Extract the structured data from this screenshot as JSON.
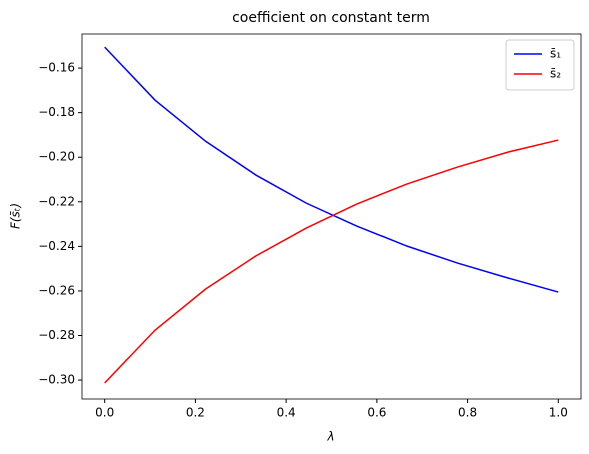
{
  "chart_data": {
    "type": "line",
    "title": "coefficient on constant term",
    "xlabel": "λ",
    "ylabel": "F(s̄ₜ)",
    "x": [
      0,
      0.1111,
      0.2222,
      0.3333,
      0.4444,
      0.5556,
      0.6667,
      0.7778,
      0.8889,
      1.0
    ],
    "series": [
      {
        "name": "s̄₁",
        "color": "#0000ff",
        "values": [
          -0.1506,
          -0.1744,
          -0.1928,
          -0.208,
          -0.2206,
          -0.2309,
          -0.2399,
          -0.2475,
          -0.2542,
          -0.2605
        ]
      },
      {
        "name": "s̄₂",
        "color": "#ff0000",
        "values": [
          -0.3013,
          -0.2776,
          -0.2592,
          -0.2443,
          -0.2318,
          -0.221,
          -0.212,
          -0.2044,
          -0.1977,
          -0.1923
        ]
      }
    ],
    "xlim": [
      -0.05,
      1.05
    ],
    "ylim": [
      -0.3085,
      -0.1447
    ],
    "xticks": [
      {
        "value": 0,
        "label": "0.0"
      },
      {
        "value": 0.2,
        "label": "0.2"
      },
      {
        "value": 0.4,
        "label": "0.4"
      },
      {
        "value": 0.6,
        "label": "0.6"
      },
      {
        "value": 0.8,
        "label": "0.8"
      },
      {
        "value": 1.0,
        "label": "1.0"
      }
    ],
    "yticks": [
      {
        "value": -0.3,
        "label": "−0.30"
      },
      {
        "value": -0.28,
        "label": "−0.28"
      },
      {
        "value": -0.26,
        "label": "−0.26"
      },
      {
        "value": -0.24,
        "label": "−0.24"
      },
      {
        "value": -0.22,
        "label": "−0.22"
      },
      {
        "value": -0.2,
        "label": "−0.20"
      },
      {
        "value": -0.18,
        "label": "−0.18"
      },
      {
        "value": -0.16,
        "label": "−0.16"
      }
    ],
    "legend": "upper right",
    "grid": false
  }
}
